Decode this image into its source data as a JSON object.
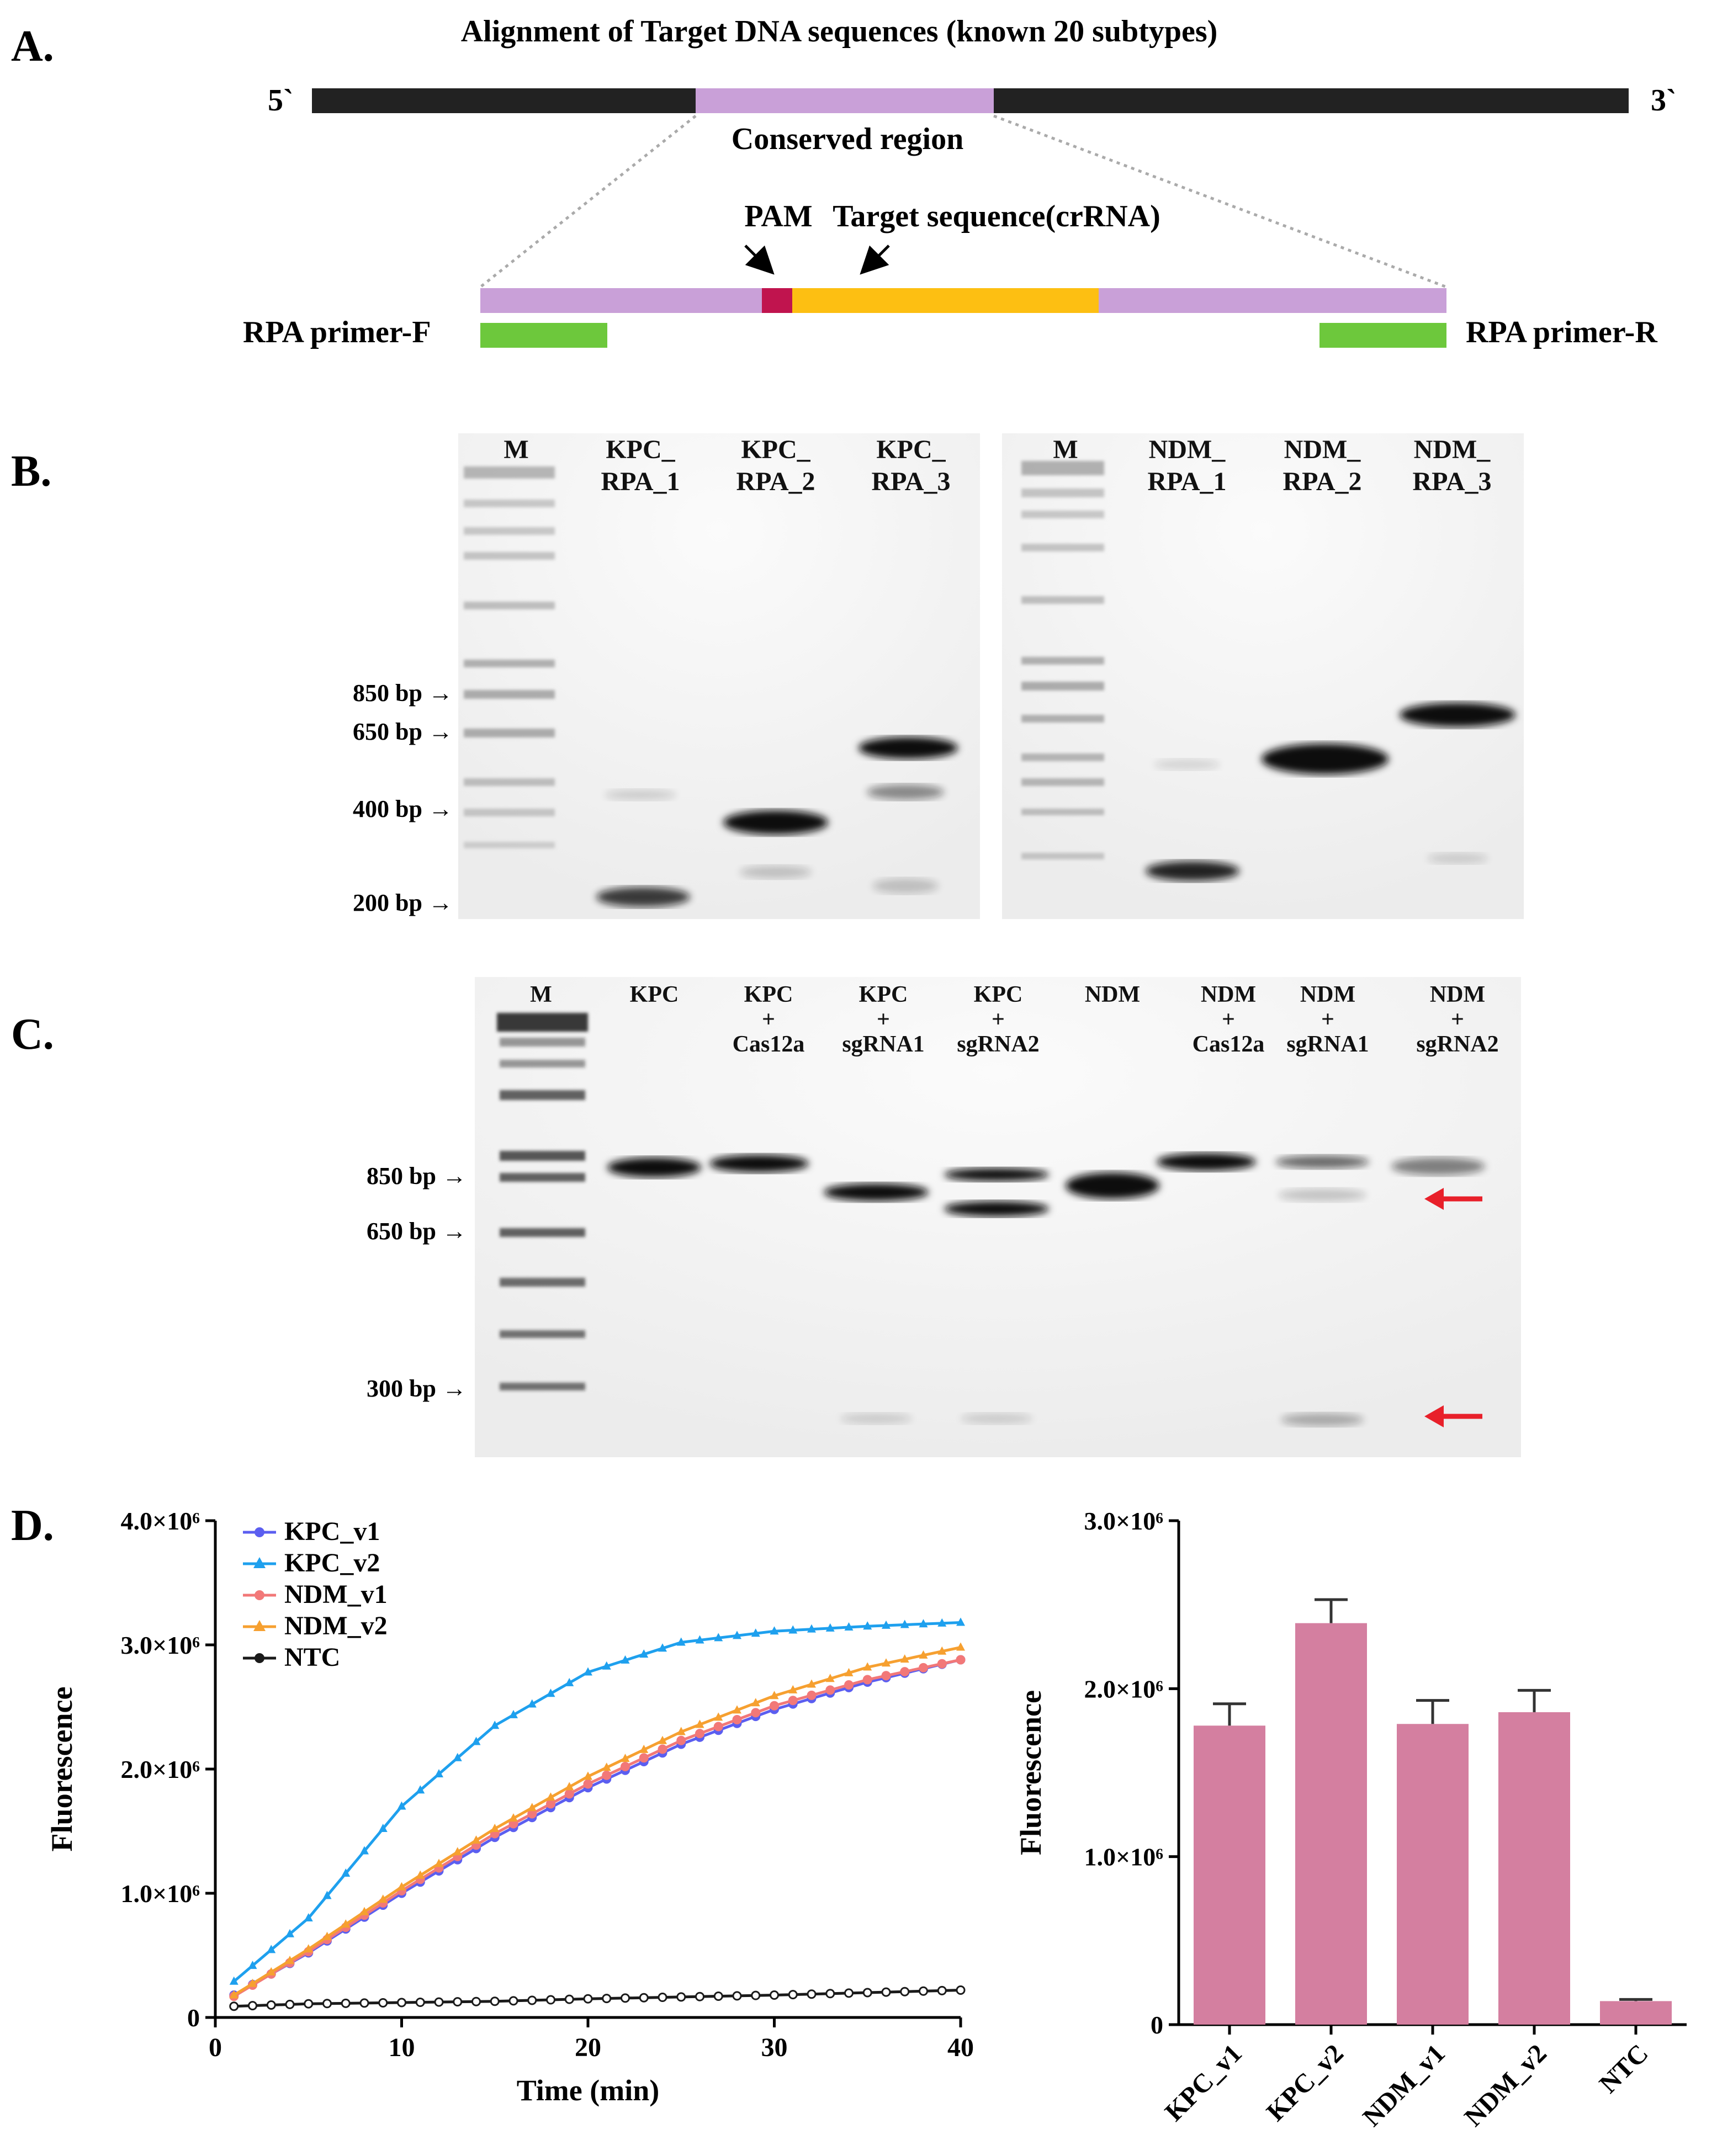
{
  "panel_a": {
    "letter": "A.",
    "title": "Alignment of Target DNA sequences (known 20 subtypes)",
    "five_prime": "5`",
    "three_prime": "3`",
    "conserved_label": "Conserved region",
    "pam_label": "PAM",
    "target_label": "Target sequence(crRNA)",
    "primer_f": "RPA primer-F",
    "primer_r": "RPA primer-R",
    "colors": {
      "dna": "#222222",
      "conserved": "#c9a0d8",
      "pam": "#c0144e",
      "target": "#fdbf12",
      "primer": "#6dc83c"
    }
  },
  "panel_b": {
    "letter": "B.",
    "size_markers": [
      "850 bp →",
      "650 bp →",
      "400 bp →",
      "200 bp →"
    ],
    "gel1_lanes": [
      [
        "M",
        ""
      ],
      [
        "KPC_",
        "RPA_1"
      ],
      [
        "KPC_",
        "RPA_2"
      ],
      [
        "KPC_",
        "RPA_3"
      ]
    ],
    "gel2_lanes": [
      [
        "M",
        ""
      ],
      [
        "NDM_",
        "RPA_1"
      ],
      [
        "NDM_",
        "RPA_2"
      ],
      [
        "NDM_",
        "RPA_3"
      ]
    ]
  },
  "panel_c": {
    "letter": "C.",
    "size_markers": [
      "850 bp →",
      "650 bp →",
      "300 bp →"
    ],
    "lanes": [
      [
        "M",
        "",
        ""
      ],
      [
        "KPC",
        "",
        ""
      ],
      [
        "KPC",
        "+",
        "Cas12a"
      ],
      [
        "KPC",
        "+",
        "sgRNA1"
      ],
      [
        "KPC",
        "+",
        "sgRNA2"
      ],
      [
        "NDM",
        "",
        ""
      ],
      [
        "NDM",
        "+",
        "Cas12a"
      ],
      [
        "NDM",
        "+",
        "sgRNA1"
      ],
      [
        "NDM",
        "+",
        "sgRNA2"
      ]
    ],
    "arrow_color": "#e8202a"
  },
  "panel_d": {
    "letter": "D."
  },
  "chart_data": [
    {
      "type": "line",
      "xlabel": "Time (min)",
      "ylabel": "Fluorescence",
      "xlim": [
        0,
        40
      ],
      "ylim": [
        0,
        4000000
      ],
      "xticks": [
        "0",
        "10",
        "20",
        "30",
        "40"
      ],
      "yticks": [
        "0",
        "1.0×10⁶",
        "2.0×10⁶",
        "3.0×10⁶",
        "4.0×10⁶"
      ],
      "legend_position": "top-left",
      "series": [
        {
          "name": "KPC_v1",
          "color": "#5b5ef0",
          "marker": "circle",
          "x": [
            1,
            5,
            10,
            15,
            20,
            25,
            30,
            35,
            40
          ],
          "y": [
            180000,
            520000,
            1000000,
            1450000,
            1850000,
            2200000,
            2480000,
            2700000,
            2880000
          ]
        },
        {
          "name": "KPC_v2",
          "color": "#1ea0ee",
          "marker": "triangle",
          "x": [
            1,
            5,
            10,
            15,
            20,
            25,
            30,
            35,
            40
          ],
          "y": [
            290000,
            800000,
            1700000,
            2350000,
            2780000,
            3020000,
            3110000,
            3150000,
            3180000
          ]
        },
        {
          "name": "NDM_v1",
          "color": "#f27878",
          "marker": "circle",
          "x": [
            1,
            5,
            10,
            15,
            20,
            25,
            30,
            35,
            40
          ],
          "y": [
            170000,
            530000,
            1020000,
            1480000,
            1880000,
            2230000,
            2510000,
            2720000,
            2880000
          ]
        },
        {
          "name": "NDM_v2",
          "color": "#f6a030",
          "marker": "triangle",
          "x": [
            1,
            5,
            10,
            15,
            20,
            25,
            30,
            35,
            40
          ],
          "y": [
            180000,
            550000,
            1050000,
            1520000,
            1940000,
            2300000,
            2590000,
            2820000,
            2980000
          ]
        },
        {
          "name": "NTC",
          "color": "#1a1a1a",
          "marker": "circle",
          "x": [
            1,
            5,
            10,
            15,
            20,
            25,
            30,
            35,
            40
          ],
          "y": [
            90000,
            110000,
            120000,
            130000,
            150000,
            165000,
            180000,
            200000,
            220000
          ]
        }
      ]
    },
    {
      "type": "bar",
      "ylabel": "Fluorescence",
      "ylim": [
        0,
        3000000
      ],
      "yticks": [
        "0",
        "1.0×10⁶",
        "2.0×10⁶",
        "3.0×10⁶"
      ],
      "categories": [
        "KPC_v1",
        "KPC_v2",
        "NDM_v1",
        "NDM_v2",
        "NTC"
      ],
      "values": [
        1780000,
        2390000,
        1790000,
        1860000,
        140000
      ],
      "errors": [
        130000,
        140000,
        140000,
        130000,
        10000
      ],
      "color": "#d47fa0"
    }
  ]
}
